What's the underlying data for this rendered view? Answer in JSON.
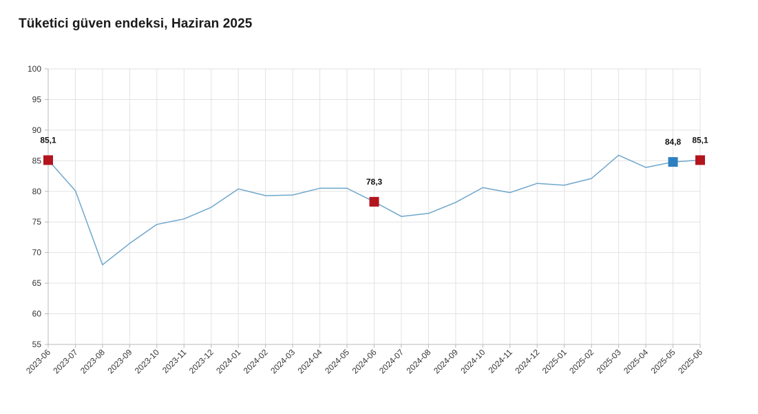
{
  "chart_data": {
    "type": "line",
    "title": "Tüketici güven endeksi, Haziran 2025",
    "xlabel": "",
    "ylabel": "",
    "ylim": [
      55,
      100
    ],
    "yticks": [
      "55",
      "60",
      "65",
      "70",
      "75",
      "80",
      "85",
      "90",
      "95",
      "100"
    ],
    "grid": true,
    "legend": "none",
    "categories": [
      "2023-06",
      "2023-07",
      "2023-08",
      "2023-09",
      "2023-10",
      "2023-11",
      "2023-12",
      "2024-01",
      "2024-02",
      "2024-03",
      "2024-04",
      "2024-05",
      "2024-06",
      "2024-07",
      "2024-08",
      "2024-09",
      "2024-10",
      "2024-11",
      "2024-12",
      "2025-01",
      "2025-02",
      "2025-03",
      "2025-04",
      "2025-05",
      "2025-06"
    ],
    "series": [
      {
        "values": [
          85.1,
          80.1,
          68.0,
          71.5,
          74.6,
          75.5,
          77.4,
          80.4,
          79.3,
          79.4,
          80.5,
          80.5,
          78.3,
          75.9,
          76.4,
          78.2,
          80.6,
          79.8,
          81.3,
          81.0,
          82.1,
          85.9,
          83.9,
          84.8,
          85.1
        ],
        "color": "#6ea6cc"
      }
    ],
    "highlights": [
      {
        "category": "2023-06",
        "value": 85.1,
        "label": "85,1",
        "color": "#b3141d"
      },
      {
        "category": "2024-06",
        "value": 78.3,
        "label": "78,3",
        "color": "#b3141d"
      },
      {
        "category": "2025-05",
        "value": 84.8,
        "label": "84,8",
        "color": "#2e7fbf"
      },
      {
        "category": "2025-06",
        "value": 85.1,
        "label": "85,1",
        "color": "#b3141d"
      }
    ],
    "colors": {
      "line": "#6ea6cc",
      "grid": "#e2e2e2",
      "axis": "#b8b8b8"
    }
  }
}
